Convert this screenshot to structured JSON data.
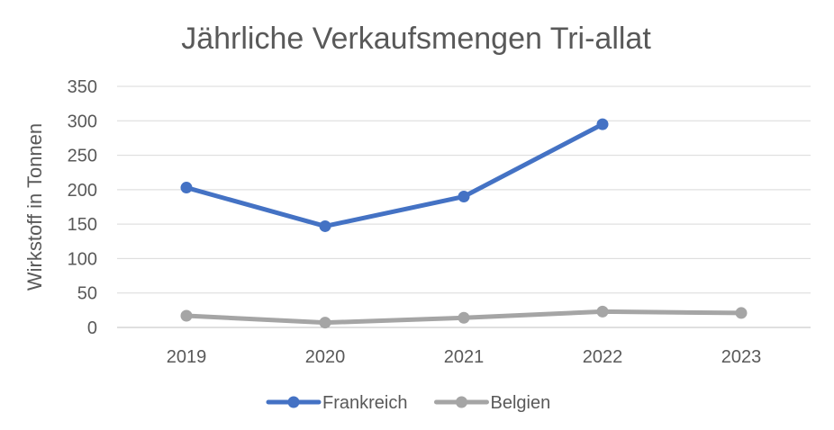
{
  "chart_data": {
    "type": "line",
    "title": "Jährliche Verkaufsmengen Tri-allat",
    "xlabel": "",
    "ylabel": "Wirkstoff in Tonnen",
    "categories": [
      "2019",
      "2020",
      "2021",
      "2022",
      "2023"
    ],
    "ylim": [
      0,
      350
    ],
    "yticks": [
      0,
      50,
      100,
      150,
      200,
      250,
      300,
      350
    ],
    "grid": true,
    "legend_position": "bottom",
    "series": [
      {
        "name": "Frankreich",
        "color": "#4472C4",
        "values": [
          203,
          147,
          190,
          295,
          null
        ]
      },
      {
        "name": "Belgien",
        "color": "#A5A5A5",
        "values": [
          17,
          7,
          14,
          23,
          21
        ]
      }
    ]
  }
}
